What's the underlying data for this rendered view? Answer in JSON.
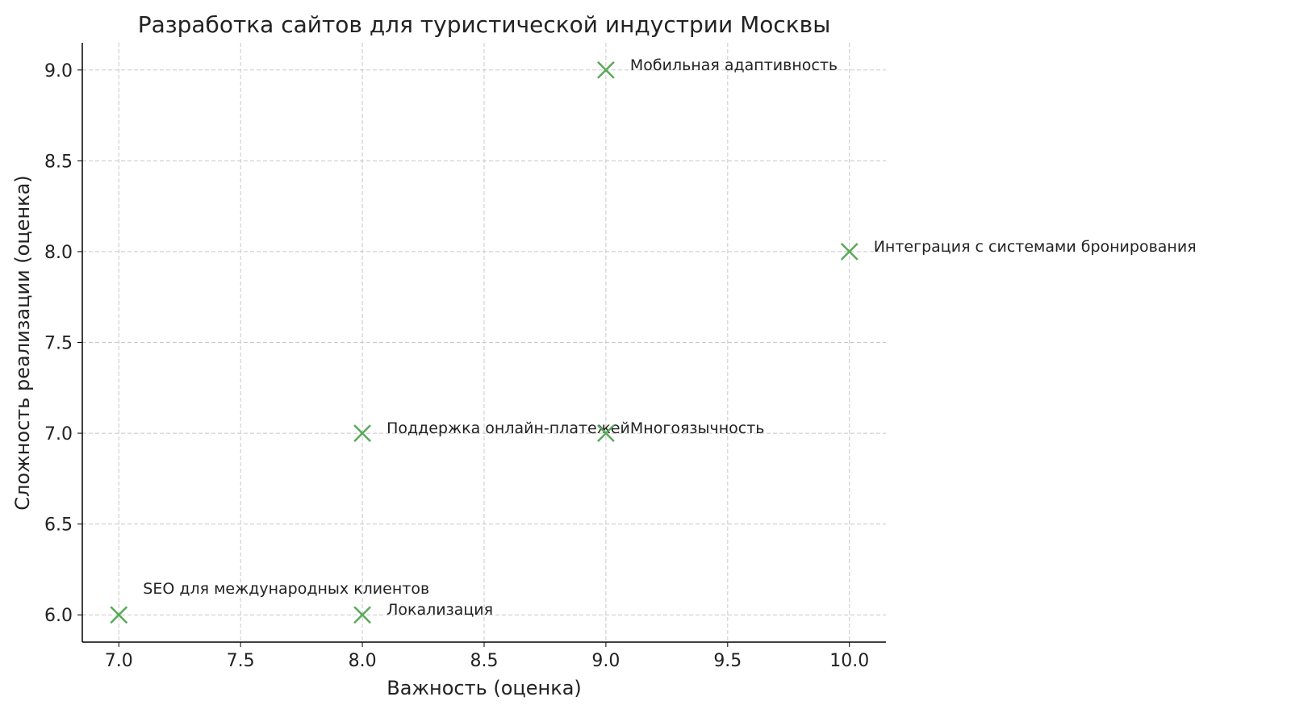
{
  "chart_data": {
    "type": "scatter",
    "title": "Разработка сайтов для туристической индустрии Москвы",
    "xlabel": "Важность (оценка)",
    "ylabel": "Сложность реализации (оценка)",
    "xlim": [
      6.85,
      10.15
    ],
    "ylim": [
      5.85,
      9.15
    ],
    "xticks": [
      "7.0",
      "7.5",
      "8.0",
      "8.5",
      "9.0",
      "9.5",
      "10.0"
    ],
    "yticks": [
      "6.0",
      "6.5",
      "7.0",
      "7.5",
      "8.0",
      "8.5",
      "9.0"
    ],
    "grid": true,
    "marker": "x",
    "color": "#5aa95a",
    "points": [
      {
        "x": 9,
        "y": 9,
        "label": "Мобильная адаптивность"
      },
      {
        "x": 10,
        "y": 8,
        "label": "Интеграция с системами бронирования"
      },
      {
        "x": 8,
        "y": 7,
        "label": "Поддержка онлайн-платежей"
      },
      {
        "x": 9,
        "y": 7,
        "label": "Многоязычность"
      },
      {
        "x": 7,
        "y": 6,
        "label": "SEO для международных клиентов"
      },
      {
        "x": 8,
        "y": 6,
        "label": "Локализация"
      }
    ]
  }
}
